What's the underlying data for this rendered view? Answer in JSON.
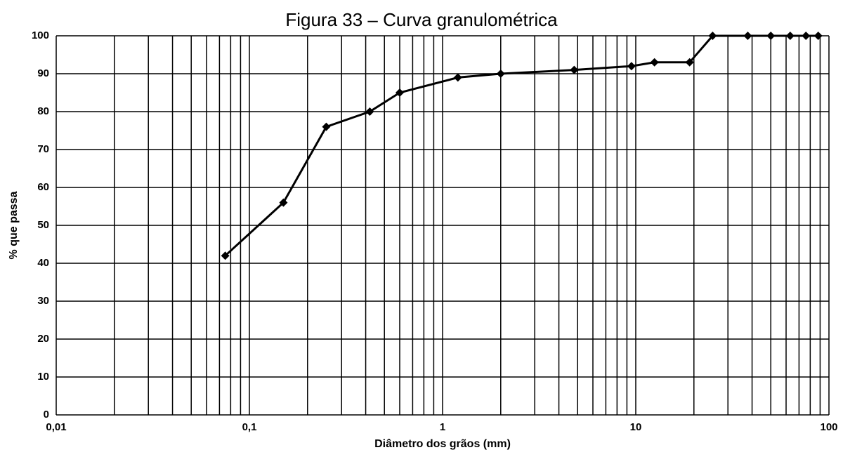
{
  "chart_data": {
    "type": "line",
    "title": "Figura 33 – Curva granulométrica",
    "x_label": "Diâmetro dos grãos (mm)",
    "y_label": "% que passa",
    "x": [
      0.075,
      0.15,
      0.25,
      0.42,
      0.6,
      1.2,
      2.0,
      4.8,
      9.5,
      12.5,
      19,
      25,
      38,
      50,
      63,
      76,
      88
    ],
    "series": [
      {
        "name": "Curva granulométrica",
        "color": "#000000",
        "values": [
          42,
          56,
          76,
          80,
          85,
          89,
          90,
          91,
          92,
          93,
          93,
          100,
          100,
          100,
          100,
          100,
          100
        ]
      }
    ],
    "xlim": [
      0.01,
      100
    ],
    "xscale": "log",
    "xticks": [
      {
        "value": 0.01,
        "label": "0,01"
      },
      {
        "value": 0.1,
        "label": "0,1"
      },
      1,
      10,
      100
    ],
    "ylim": [
      0,
      100
    ],
    "yticks": [
      0,
      10,
      20,
      30,
      40,
      50,
      60,
      70,
      80,
      90,
      100
    ],
    "grid": true
  }
}
